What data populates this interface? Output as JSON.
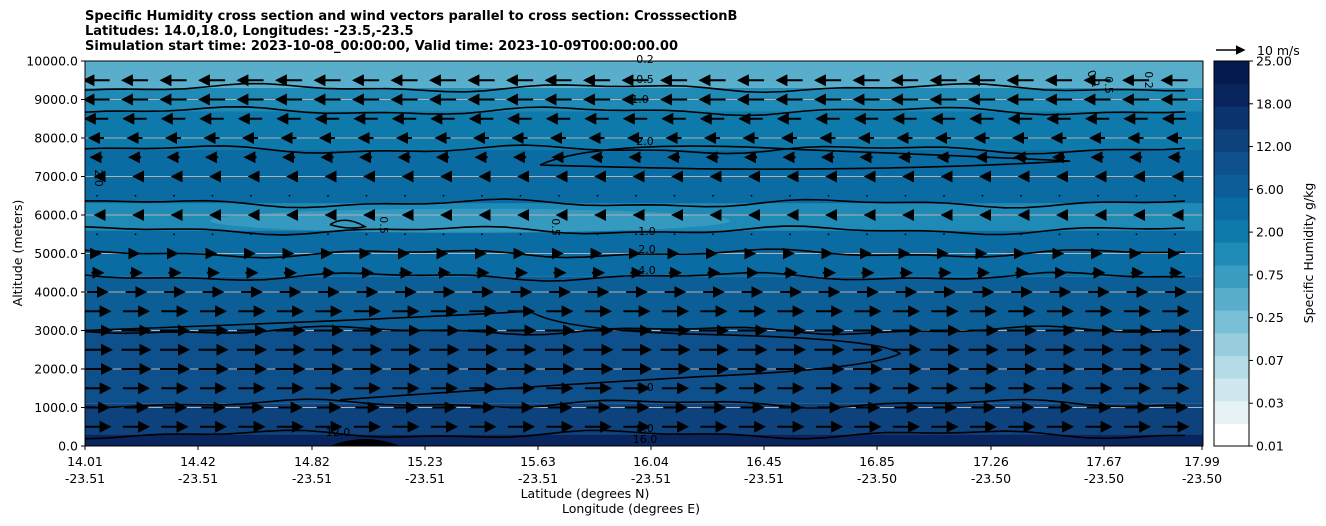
{
  "title_lines": [
    "Specific Humidity cross section and wind vectors parallel to cross section: CrosssectionB",
    "Latitudes: 14.0,18.0, Longitudes: -23.5,-23.5",
    "Simulation start time: 2023-10-08_00:00:00, Valid time: 2023-10-09T00:00:00.00"
  ],
  "chart_data": {
    "type": "heatmap",
    "subtype": "filled contour cross-section with wind vectors",
    "ylabel": "Altitude (meters)",
    "xlabel_line1": "Latitude (degrees N)",
    "xlabel_line2": "Longitude (degrees E)",
    "ylim": [
      0,
      10000
    ],
    "y_ticks": [
      "0.0",
      "1000.0",
      "2000.0",
      "3000.0",
      "4000.0",
      "5000.0",
      "6000.0",
      "7000.0",
      "8000.0",
      "9000.0",
      "10000.0"
    ],
    "x_lat_ticks": [
      "14.01",
      "14.42",
      "14.82",
      "15.23",
      "15.63",
      "16.04",
      "16.45",
      "16.85",
      "17.26",
      "17.67",
      "17.99"
    ],
    "x_lon_ticks": [
      "-23.51",
      "-23.51",
      "-23.51",
      "-23.51",
      "-23.51",
      "-23.51",
      "-23.51",
      "-23.50",
      "-23.50",
      "-23.50",
      "-23.50"
    ],
    "grid": "horizontal",
    "colorbar": {
      "label": "Specific Humidity g/kg",
      "ticks": [
        "0.01",
        "0.03",
        "0.07",
        "0.25",
        "0.75",
        "2.00",
        "6.00",
        "12.00",
        "18.00",
        "25.00"
      ]
    },
    "quiver_key": "10 m/s",
    "contour_labels": [
      "0.2",
      "0.5",
      "1.0",
      "2.0",
      "0.5",
      "0.5",
      "1.0",
      "2.0",
      "4.0",
      "8.0",
      "8.0",
      "16.0",
      "12.0",
      "2.0",
      "0.2",
      "0.2",
      "0.5"
    ],
    "humidity_layers": [
      {
        "alt_low": 9300,
        "alt_high": 10000,
        "value_g_kg": 0.3
      },
      {
        "alt_low": 8700,
        "alt_high": 9300,
        "value_g_kg": 0.75
      },
      {
        "alt_low": 7700,
        "alt_high": 8700,
        "value_g_kg": 1.5
      },
      {
        "alt_low": 6300,
        "alt_high": 7700,
        "value_g_kg": 2.0
      },
      {
        "alt_low": 5600,
        "alt_high": 6300,
        "value_g_kg": 1.0
      },
      {
        "alt_low": 5000,
        "alt_high": 5600,
        "value_g_kg": 2.0
      },
      {
        "alt_low": 4400,
        "alt_high": 5000,
        "value_g_kg": 3.0
      },
      {
        "alt_low": 3000,
        "alt_high": 4400,
        "value_g_kg": 5.0
      },
      {
        "alt_low": 1100,
        "alt_high": 3000,
        "value_g_kg": 7.0
      },
      {
        "alt_low": 300,
        "alt_high": 1100,
        "value_g_kg": 10.0
      },
      {
        "alt_low": 0,
        "alt_high": 300,
        "value_g_kg": 16.0
      }
    ],
    "wind_rows": [
      {
        "alt": 500,
        "u_m_s": 9
      },
      {
        "alt": 1000,
        "u_m_s": 8
      },
      {
        "alt": 1500,
        "u_m_s": 9
      },
      {
        "alt": 2000,
        "u_m_s": 10
      },
      {
        "alt": 2500,
        "u_m_s": 10
      },
      {
        "alt": 3000,
        "u_m_s": 10
      },
      {
        "alt": 3500,
        "u_m_s": 9
      },
      {
        "alt": 4000,
        "u_m_s": 7
      },
      {
        "alt": 4500,
        "u_m_s": 4
      },
      {
        "alt": 5000,
        "u_m_s": 2
      },
      {
        "alt": 5500,
        "u_m_s": 0.5
      },
      {
        "alt": 6000,
        "u_m_s": -1
      },
      {
        "alt": 6500,
        "u_m_s": 0.5
      },
      {
        "alt": 7000,
        "u_m_s": -1
      },
      {
        "alt": 7500,
        "u_m_s": -4
      },
      {
        "alt": 8000,
        "u_m_s": -5
      },
      {
        "alt": 8500,
        "u_m_s": -8
      },
      {
        "alt": 9000,
        "u_m_s": -9
      },
      {
        "alt": 9500,
        "u_m_s": -9
      }
    ]
  }
}
